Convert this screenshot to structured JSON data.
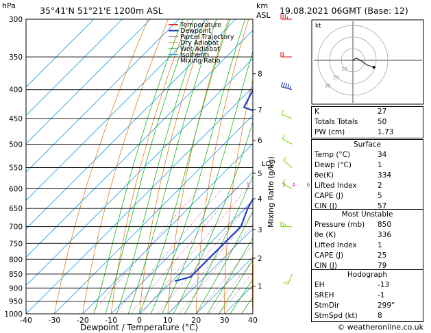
{
  "header": {
    "pressure_unit": "hPa",
    "location": "35°41'N  51°21'E  1200m  ASL",
    "height_unit_km": "km",
    "height_unit_asl": "ASL",
    "datetime": "19.08.2021  06GMT  (Base: 12)"
  },
  "hodograph": {
    "unit": "kt",
    "ring_labels": [
      "10",
      "20",
      "30"
    ]
  },
  "indices": [
    {
      "label": "K",
      "value": "27"
    },
    {
      "label": "Totals Totals",
      "value": "50"
    },
    {
      "label": "PW (cm)",
      "value": "1.73"
    }
  ],
  "surface": {
    "title": "Surface",
    "rows": [
      {
        "label": "Temp (°C)",
        "value": "34"
      },
      {
        "label": "Dewp (°C)",
        "value": "1"
      },
      {
        "label": "θe(K)",
        "value": "334"
      },
      {
        "label": "Lifted Index",
        "value": "2"
      },
      {
        "label": "CAPE (J)",
        "value": "5"
      },
      {
        "label": "CIN (J)",
        "value": "57"
      }
    ]
  },
  "most_unstable": {
    "title": "Most Unstable",
    "rows": [
      {
        "label": "Pressure (mb)",
        "value": "850"
      },
      {
        "label": "θe (K)",
        "value": "336"
      },
      {
        "label": "Lifted Index",
        "value": "1"
      },
      {
        "label": "CAPE (J)",
        "value": "25"
      },
      {
        "label": "CIN (J)",
        "value": "79"
      }
    ]
  },
  "hodograph_table": {
    "title": "Hodograph",
    "rows": [
      {
        "label": "EH",
        "value": "-13"
      },
      {
        "label": "SREH",
        "value": "-1"
      },
      {
        "label": "StmDir",
        "value": "299°"
      },
      {
        "label": "StmSpd (kt)",
        "value": "8"
      }
    ]
  },
  "copyright": "© weatheronline.co.uk",
  "colors": {
    "temperature": "#e8282a",
    "dewpoint": "#1e3cc8",
    "parcel": "#9a9a9a",
    "dry_adiabat": "#e07d1a",
    "wet_adiabat": "#19b419",
    "isotherm": "#1ea0e6",
    "mixing_ratio": "#c81eaa",
    "wind_barb_upper": "#e8282a",
    "wind_barb_mid": "#1e3cc8",
    "wind_barb_low": "#8cdc1e"
  },
  "chart_data": {
    "type": "line",
    "title": "",
    "xlabel": "Dewpoint / Temperature (°C)",
    "ylabel": "hPa",
    "mixing_ratio_axis_label": "Mixing Ratio (g/kg)",
    "xlim": [
      -40,
      40
    ],
    "ylim": [
      1000,
      300
    ],
    "pressure_ticks": [
      300,
      350,
      400,
      450,
      500,
      550,
      600,
      650,
      700,
      750,
      800,
      850,
      900,
      950,
      1000
    ],
    "temperature_ticks": [
      -40,
      -30,
      -20,
      -10,
      0,
      10,
      20,
      30,
      40
    ],
    "height_ticks_km": [
      {
        "label": "8",
        "p": 375
      },
      {
        "label": "7",
        "p": 434
      },
      {
        "label": "6",
        "p": 492
      },
      {
        "label": "5",
        "p": 563
      },
      {
        "label": "4",
        "p": 625
      },
      {
        "label": "3",
        "p": 709
      },
      {
        "label": "2",
        "p": 797
      },
      {
        "label": "1",
        "p": 893
      }
    ],
    "lcl": {
      "label": "LCL",
      "p": 540
    },
    "mixing_ratio_labels": [
      {
        "label": "1",
        "t": -5.8
      },
      {
        "label": "2",
        "t": 2.0
      },
      {
        "label": "3",
        "t": 6.8
      },
      {
        "label": "4",
        "t": 10.3
      },
      {
        "label": "6",
        "t": 15.5
      },
      {
        "label": "8",
        "t": 19.3
      },
      {
        "label": "10",
        "t": 22.3
      },
      {
        "label": "15",
        "t": 28.2
      },
      {
        "label": "20",
        "t": 32.4
      },
      {
        "label": "25",
        "t": 35.8
      }
    ],
    "legend": [
      "Temperature",
      "Dewpoint",
      "Parcel Trajectory",
      "Dry Adiabat",
      "Wet Adiabat",
      "Isotherm",
      "Mixing Ratio"
    ],
    "legend_position": "top-left",
    "series": [
      {
        "name": "Temperature",
        "points": [
          {
            "p": 875,
            "t": 34
          },
          {
            "p": 850,
            "t": 30
          },
          {
            "p": 800,
            "t": 26
          },
          {
            "p": 750,
            "t": 22
          },
          {
            "p": 700,
            "t": 18
          },
          {
            "p": 650,
            "t": 14
          },
          {
            "p": 600,
            "t": 10
          },
          {
            "p": 550,
            "t": 5
          },
          {
            "p": 500,
            "t": -1
          },
          {
            "p": 460,
            "t": -6
          },
          {
            "p": 450,
            "t": -5
          },
          {
            "p": 430,
            "t": -6
          },
          {
            "p": 400,
            "t": -10
          },
          {
            "p": 370,
            "t": -12
          },
          {
            "p": 350,
            "t": -14
          }
        ]
      },
      {
        "name": "Dewpoint",
        "points": [
          {
            "p": 875,
            "t": 1
          },
          {
            "p": 860,
            "t": 5
          },
          {
            "p": 800,
            "t": 5
          },
          {
            "p": 750,
            "t": 5
          },
          {
            "p": 700,
            "t": 5
          },
          {
            "p": 650,
            "t": 1
          },
          {
            "p": 600,
            "t": -2
          },
          {
            "p": 550,
            "t": -7
          },
          {
            "p": 500,
            "t": -7
          },
          {
            "p": 455,
            "t": -6
          },
          {
            "p": 450,
            "t": -21
          },
          {
            "p": 430,
            "t": -36
          },
          {
            "p": 400,
            "t": -39
          },
          {
            "p": 350,
            "t": -46
          },
          {
            "p": 300,
            "t": -49
          }
        ]
      },
      {
        "name": "Parcel Trajectory",
        "points": [
          {
            "p": 875,
            "t": 34
          },
          {
            "p": 800,
            "t": 26
          },
          {
            "p": 700,
            "t": 16
          },
          {
            "p": 600,
            "t": 6
          },
          {
            "p": 540,
            "t": 0
          },
          {
            "p": 500,
            "t": -4
          },
          {
            "p": 450,
            "t": -8
          },
          {
            "p": 400,
            "t": -13
          },
          {
            "p": 350,
            "t": -20
          },
          {
            "p": 300,
            "t": -30
          }
        ]
      }
    ],
    "wind_barbs": [
      {
        "p": 300,
        "dir": 270,
        "kt": 25
      },
      {
        "p": 350,
        "dir": 270,
        "kt": 20
      },
      {
        "p": 400,
        "dir": 285,
        "kt": 35
      },
      {
        "p": 450,
        "dir": 290,
        "kt": 10
      },
      {
        "p": 500,
        "dir": 300,
        "kt": 10
      },
      {
        "p": 550,
        "dir": 310,
        "kt": 10
      },
      {
        "p": 600,
        "dir": 300,
        "kt": 10
      },
      {
        "p": 700,
        "dir": 270,
        "kt": 15
      },
      {
        "p": 850,
        "dir": 200,
        "kt": 5
      }
    ],
    "hodograph_points": [
      {
        "u": 0,
        "v": 0
      },
      {
        "u": 3,
        "v": 2
      },
      {
        "u": 8,
        "v": -1
      },
      {
        "u": 12,
        "v": -4
      },
      {
        "u": 18,
        "v": -6
      }
    ]
  }
}
